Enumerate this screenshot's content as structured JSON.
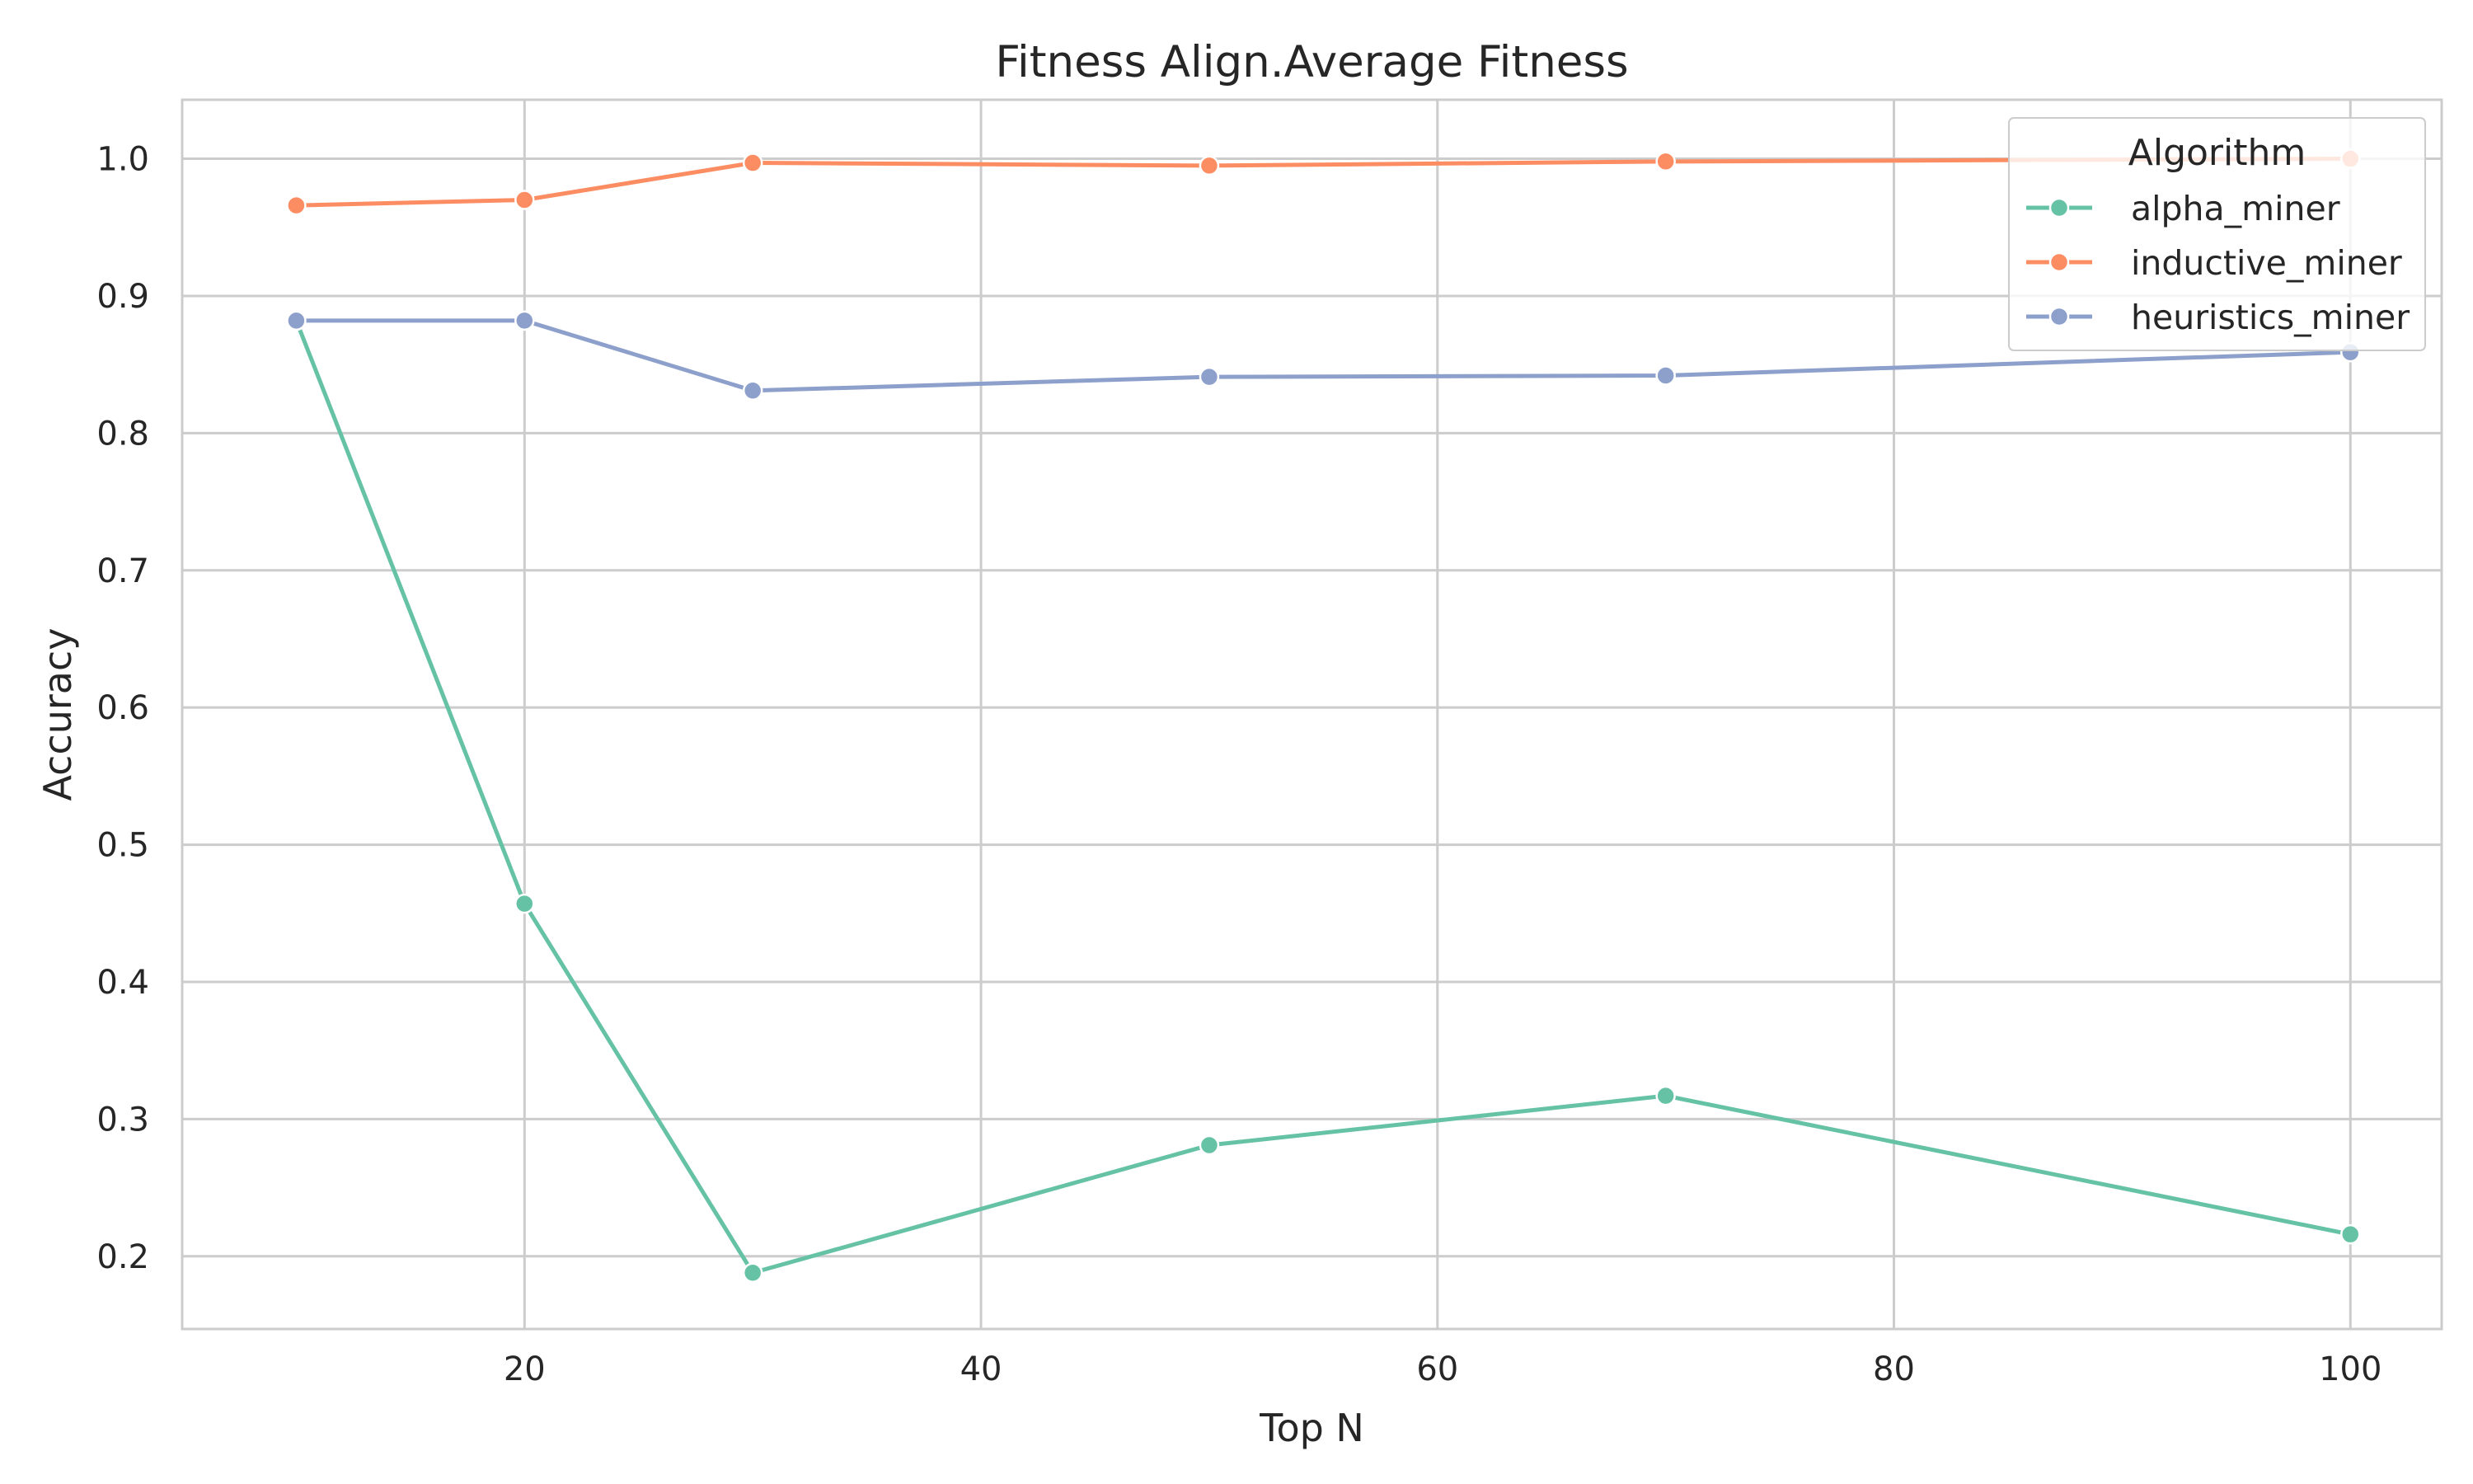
{
  "chart_data": {
    "type": "line",
    "title": "Fitness Align.Average Fitness",
    "xlabel": "Top N",
    "ylabel": "Accuracy",
    "xlim": [
      5,
      104
    ],
    "ylim": [
      0.147,
      1.043
    ],
    "xticks": [
      20,
      40,
      60,
      80,
      100
    ],
    "yticks": [
      0.2,
      0.3,
      0.4,
      0.5,
      0.6,
      0.7,
      0.8,
      0.9,
      1.0
    ],
    "grid": true,
    "legend": {
      "title": "Algorithm",
      "position": "top-right"
    },
    "x": [
      10,
      20,
      30,
      50,
      70,
      100
    ],
    "series": [
      {
        "name": "alpha_miner",
        "color": "#66c2a5",
        "values": [
          0.882,
          0.457,
          0.188,
          0.281,
          0.317,
          0.216
        ]
      },
      {
        "name": "inductive_miner",
        "color": "#fc8d62",
        "values": [
          0.966,
          0.97,
          0.997,
          0.995,
          0.998,
          1.0
        ]
      },
      {
        "name": "heuristics_miner",
        "color": "#8da0cb",
        "values": [
          0.882,
          0.882,
          0.831,
          0.841,
          0.842,
          0.859
        ]
      }
    ]
  }
}
